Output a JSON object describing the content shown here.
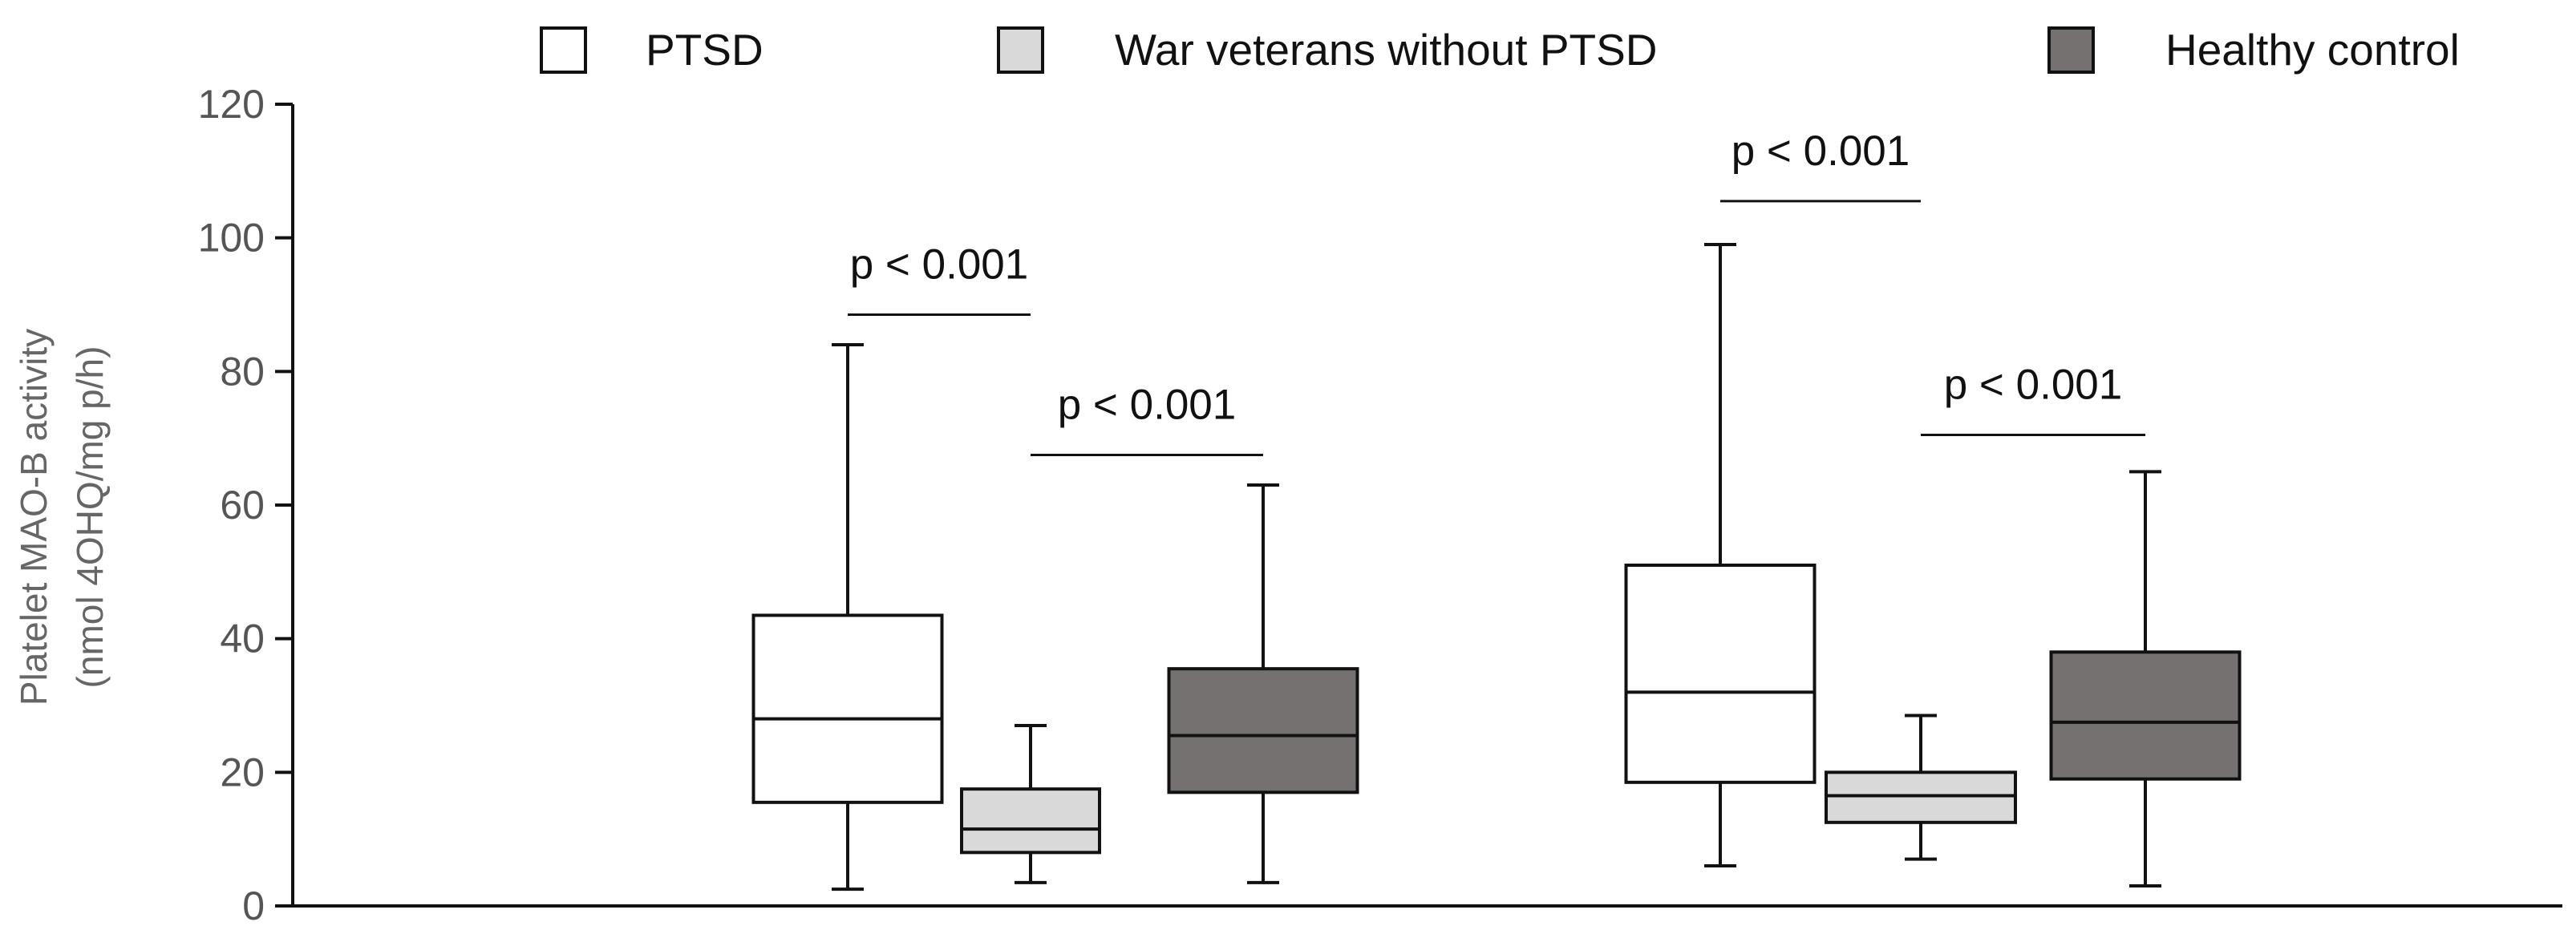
{
  "chart_data": {
    "type": "boxplot",
    "title": "",
    "ylabel_line1": "Platelet MAO-B activity",
    "ylabel_line2": "(nmol 4OHQ/mg p/h)",
    "ylim": [
      0,
      120
    ],
    "yticks": [
      0,
      20,
      40,
      60,
      80,
      100,
      120
    ],
    "legend": [
      {
        "name": "PTSD",
        "color": "#ffffff"
      },
      {
        "name": "War veterans without PTSD",
        "color": "#d9d9d9"
      },
      {
        "name": "Healthy control",
        "color": "#767171"
      }
    ],
    "groups": [
      {
        "label": "",
        "boxes": [
          {
            "series": "PTSD",
            "min": 2.5,
            "q1": 15.5,
            "median": 28,
            "q3": 43.5,
            "max": 84
          },
          {
            "series": "War veterans without PTSD",
            "min": 3.5,
            "q1": 8,
            "median": 11.5,
            "q3": 17.5,
            "max": 27
          },
          {
            "series": "Healthy control",
            "min": 3.5,
            "q1": 17,
            "median": 25.5,
            "q3": 35.5,
            "max": 63
          }
        ]
      },
      {
        "label": "",
        "boxes": [
          {
            "series": "PTSD",
            "min": 6,
            "q1": 18.5,
            "median": 32,
            "q3": 51,
            "max": 99
          },
          {
            "series": "War veterans without PTSD",
            "min": 7,
            "q1": 12.5,
            "median": 16.5,
            "q3": 20,
            "max": 28.5
          },
          {
            "series": "Healthy control",
            "min": 3,
            "q1": 19,
            "median": 27.5,
            "q3": 38,
            "max": 65
          }
        ]
      }
    ],
    "comparisons": [
      {
        "group": 0,
        "from": 0,
        "to": 1,
        "label": "p < 0.001",
        "y": 88.5
      },
      {
        "group": 0,
        "from": 1,
        "to": 2,
        "label": "p < 0.001",
        "y": 67.5
      },
      {
        "group": 1,
        "from": 0,
        "to": 1,
        "label": "p < 0.001",
        "y": 105.5
      },
      {
        "group": 1,
        "from": 1,
        "to": 2,
        "label": "p < 0.001",
        "y": 70.5
      }
    ]
  }
}
